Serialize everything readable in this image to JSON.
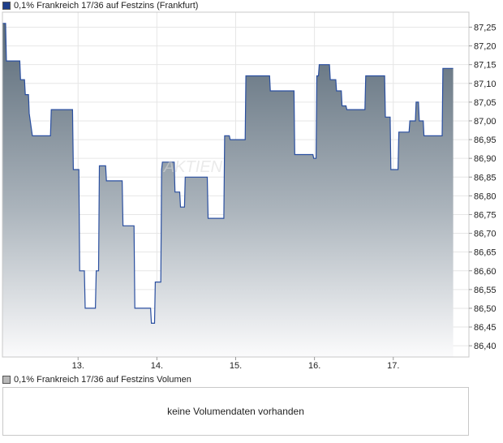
{
  "price_legend": {
    "label": "0,1% Frankreich 17/36 auf Festzins (Frankfurt)",
    "color": "#1f3f8a"
  },
  "volume_legend": {
    "label": "0,1% Frankreich 17/36 auf Festzins Volumen",
    "color": "#b8b8b8"
  },
  "volume_panel": {
    "message": "keine Volumendaten vorhanden"
  },
  "watermark": "AKTIEN",
  "chart_data": {
    "type": "area",
    "title": "0,1% Frankreich 17/36 auf Festzins (Frankfurt)",
    "xlabel": "",
    "ylabel": "",
    "ylim": [
      86.37,
      87.29
    ],
    "yticks": [
      "87,25",
      "87,20",
      "87,15",
      "87,10",
      "87,05",
      "87,00",
      "86,95",
      "86,90",
      "86,85",
      "86,80",
      "86,75",
      "86,70",
      "86,65",
      "86,60",
      "86,55",
      "86,50",
      "86,45",
      "86,40"
    ],
    "ytick_values": [
      87.25,
      87.2,
      87.15,
      87.1,
      87.05,
      87.0,
      86.95,
      86.9,
      86.85,
      86.8,
      86.75,
      86.7,
      86.65,
      86.6,
      86.55,
      86.5,
      86.45,
      86.4
    ],
    "xlim": [
      12.04,
      17.96
    ],
    "xticks": [
      "13.",
      "14.",
      "15.",
      "16.",
      "17."
    ],
    "xtick_values": [
      13,
      14,
      15,
      16,
      17
    ],
    "grid": true,
    "series": [
      {
        "name": "0,1% Frankreich 17/36 auf Festzins (Frankfurt)",
        "x": [
          12.04,
          12.08,
          12.09,
          12.15,
          12.26,
          12.27,
          12.32,
          12.33,
          12.37,
          12.38,
          12.42,
          12.65,
          12.66,
          12.93,
          12.94,
          13.01,
          13.02,
          13.08,
          13.09,
          13.22,
          13.23,
          13.26,
          13.27,
          13.35,
          13.36,
          13.56,
          13.57,
          13.71,
          13.72,
          13.92,
          13.93,
          13.97,
          13.98,
          14.05,
          14.06,
          14.07,
          14.08,
          14.22,
          14.23,
          14.29,
          14.3,
          14.35,
          14.36,
          14.4,
          14.41,
          14.64,
          14.65,
          14.85,
          14.86,
          14.92,
          14.93,
          15.12,
          15.13,
          15.43,
          15.44,
          15.74,
          15.75,
          15.98,
          15.99,
          16.02,
          16.03,
          16.05,
          16.06,
          16.19,
          16.2,
          16.27,
          16.28,
          16.34,
          16.35,
          16.37,
          16.38,
          16.4,
          16.41,
          16.64,
          16.65,
          16.89,
          16.9,
          16.96,
          16.97,
          17.06,
          17.07,
          17.2,
          17.21,
          17.28,
          17.29,
          17.32,
          17.33,
          17.38,
          17.39,
          17.62,
          17.63,
          17.76
        ],
        "values": [
          87.26,
          87.26,
          87.16,
          87.16,
          87.16,
          87.11,
          87.11,
          87.07,
          87.07,
          87.02,
          86.96,
          86.96,
          87.03,
          87.03,
          86.87,
          86.87,
          86.6,
          86.6,
          86.5,
          86.5,
          86.6,
          86.6,
          86.88,
          86.88,
          86.84,
          86.84,
          86.72,
          86.72,
          86.5,
          86.5,
          86.46,
          86.46,
          86.57,
          86.57,
          86.87,
          86.89,
          86.89,
          86.89,
          86.81,
          86.81,
          86.77,
          86.77,
          86.85,
          86.85,
          86.85,
          86.85,
          86.74,
          86.74,
          86.96,
          86.96,
          86.95,
          86.95,
          87.12,
          87.12,
          87.08,
          87.08,
          86.91,
          86.91,
          86.9,
          86.9,
          87.12,
          87.12,
          87.15,
          87.15,
          87.11,
          87.11,
          87.08,
          87.08,
          87.04,
          87.04,
          87.04,
          87.04,
          87.03,
          87.03,
          87.12,
          87.12,
          87.01,
          87.01,
          86.87,
          86.87,
          86.97,
          86.97,
          87.0,
          87.0,
          87.05,
          87.05,
          87.0,
          87.0,
          86.96,
          86.96,
          87.14,
          87.14
        ]
      }
    ]
  }
}
